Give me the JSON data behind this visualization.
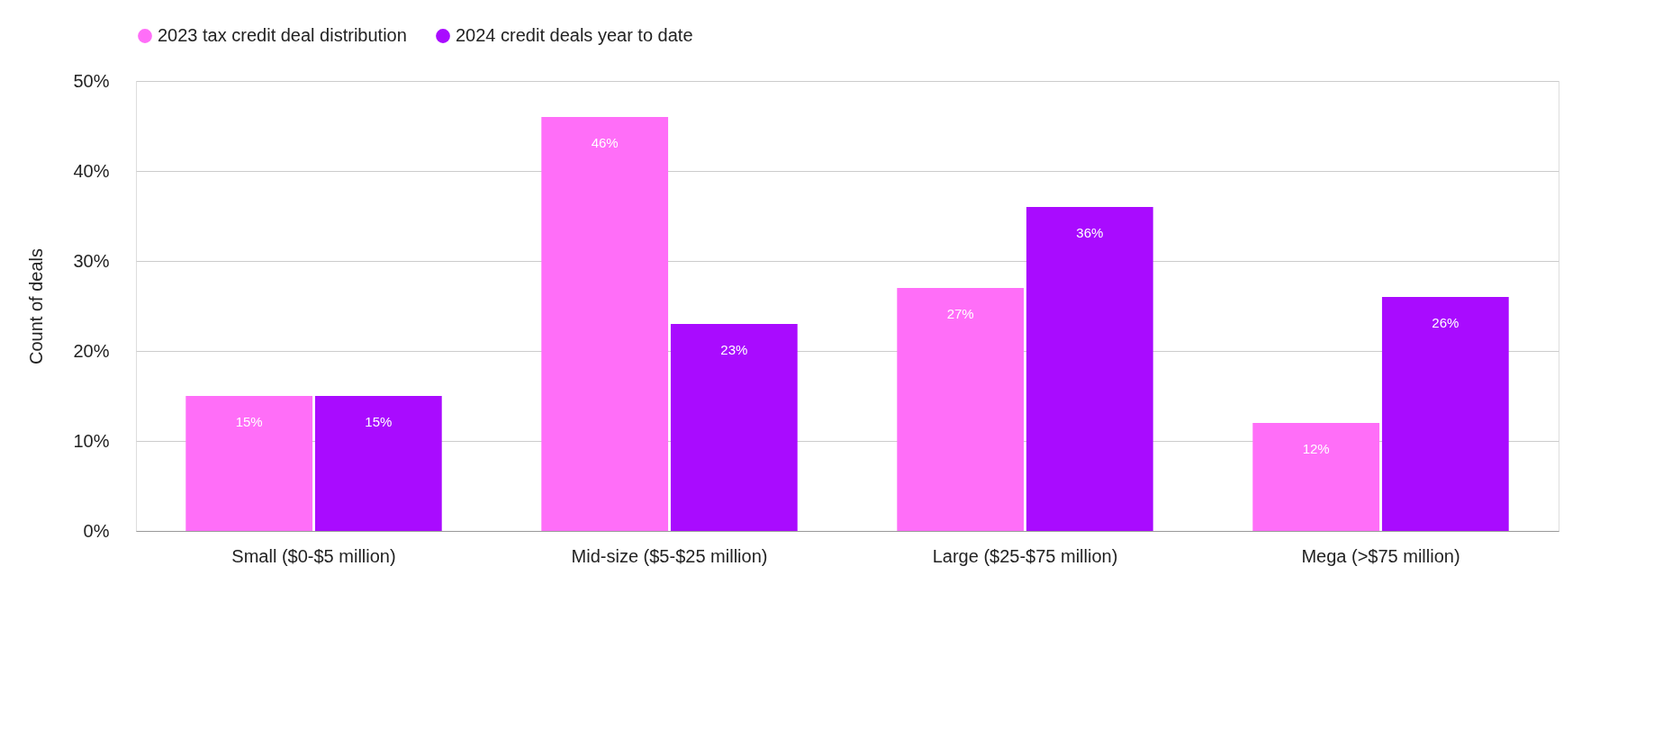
{
  "chart_data": {
    "type": "bar",
    "ylabel": "Count of deals",
    "categories": [
      "Small ($0-$5 million)",
      "Mid-size ($5-$25 million)",
      "Large ($25-$75 million)",
      "Mega (>$75 million)"
    ],
    "series": [
      {
        "name": "2023 tax credit deal distribution",
        "color": "#ff6ef8",
        "values": [
          15,
          46,
          27,
          12
        ],
        "value_labels": [
          "15%",
          "46%",
          "27%",
          "12%"
        ]
      },
      {
        "name": "2024 credit deals year to date",
        "color": "#a90bff",
        "values": [
          15,
          23,
          36,
          26
        ],
        "value_labels": [
          "15%",
          "23%",
          "36%",
          "26%"
        ]
      }
    ],
    "ylim": [
      0,
      50
    ],
    "yticks": [
      {
        "value": 0,
        "label": "0%"
      },
      {
        "value": 10,
        "label": "10%"
      },
      {
        "value": 20,
        "label": "20%"
      },
      {
        "value": 30,
        "label": "30%"
      },
      {
        "value": 40,
        "label": "40%"
      },
      {
        "value": 50,
        "label": "50%"
      }
    ],
    "grid": "y",
    "legend": "top left"
  }
}
